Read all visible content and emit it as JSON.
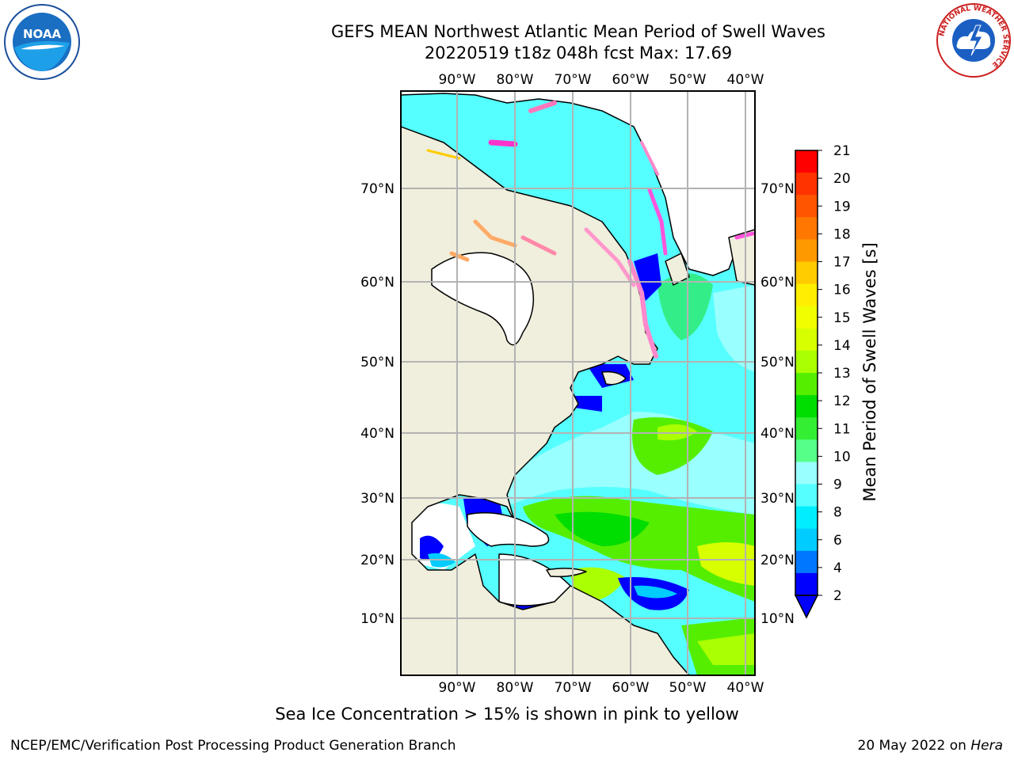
{
  "title_line1": "GEFS MEAN Northwest Atlantic Mean Period of Swell Waves",
  "title_line2": "20220519 t18z 048h fcst   Max: 17.69",
  "lon_labels": [
    "90°W",
    "80°W",
    "70°W",
    "60°W",
    "50°W",
    "40°W"
  ],
  "lat_labels": [
    "70°N",
    "60°N",
    "50°N",
    "40°N",
    "30°N",
    "20°N",
    "10°N"
  ],
  "colorbar": {
    "label": "Mean Period of Swell Waves [s]",
    "ticks": [
      "21",
      "20",
      "19",
      "18",
      "17",
      "16",
      "15",
      "14",
      "13",
      "12",
      "11",
      "10",
      "9",
      "8",
      "6",
      "4",
      "2"
    ],
    "colors": [
      "#ff0000",
      "#ff3300",
      "#ff5500",
      "#ff7700",
      "#ff9900",
      "#ffcc00",
      "#ffee00",
      "#f0ff00",
      "#d8ff00",
      "#aaff00",
      "#55ee00",
      "#00dd00",
      "#33ee33",
      "#55ff88",
      "#99ffff",
      "#55ffff",
      "#00eeff",
      "#00ccff",
      "#0077ff",
      "#0000ff"
    ]
  },
  "caption": "Sea Ice Concentration > 15% is shown in pink to yellow",
  "footer_left": "NCEP/EMC/Verification Post Processing Product Generation Branch",
  "footer_date": "20 May 2022 on",
  "footer_host": "Hera",
  "logos": {
    "noaa_text": "NOAA",
    "nws_text": "NATIONAL WEATHER SERVICE"
  }
}
